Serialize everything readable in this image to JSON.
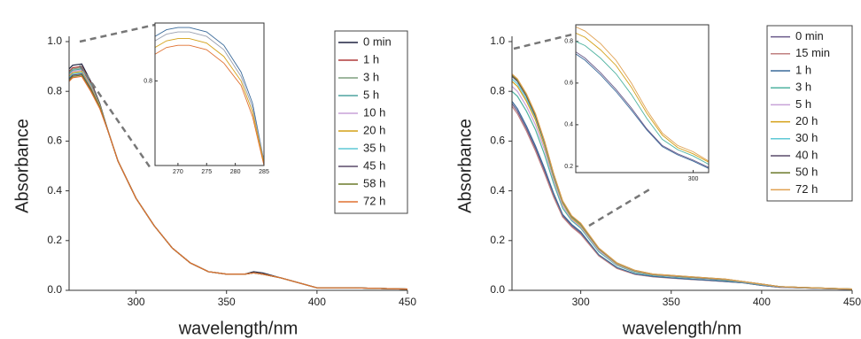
{
  "chart_data": [
    {
      "type": "line",
      "x_label": "wavelength/nm",
      "y_label": "Absorbance",
      "x": [
        263,
        265,
        270,
        275,
        280,
        285,
        290,
        300,
        310,
        320,
        330,
        340,
        350,
        360,
        365,
        370,
        380,
        390,
        400,
        420,
        450
      ],
      "xlim": [
        263,
        450
      ],
      "xticks": [
        300,
        350,
        400,
        450
      ],
      "ylim": [
        0,
        1
      ],
      "yticks": [
        {
          "value": 0,
          "label": "0.0"
        },
        0.2,
        0.4,
        0.6,
        0.8,
        {
          "value": 1,
          "label": "1.0"
        }
      ],
      "legend": "upper right",
      "series": [
        {
          "name": "0 min",
          "color": "#1f2240",
          "values": [
            0.89,
            0.905,
            0.91,
            0.84,
            0.75,
            0.63,
            0.52,
            0.37,
            0.26,
            0.17,
            0.11,
            0.075,
            0.065,
            0.065,
            0.075,
            0.07,
            0.05,
            0.03,
            0.01,
            0.01,
            0.005
          ]
        },
        {
          "name": "1 h",
          "color": "#b03a3a",
          "values": [
            0.88,
            0.895,
            0.9,
            0.835,
            0.745,
            0.63,
            0.52,
            0.37,
            0.26,
            0.17,
            0.11,
            0.075,
            0.065,
            0.065,
            0.07,
            0.065,
            0.05,
            0.03,
            0.01,
            0.01,
            0.005
          ]
        },
        {
          "name": "3 h",
          "color": "#7f9f7f",
          "values": [
            0.875,
            0.89,
            0.895,
            0.83,
            0.745,
            0.63,
            0.52,
            0.37,
            0.26,
            0.17,
            0.11,
            0.075,
            0.065,
            0.065,
            0.07,
            0.065,
            0.05,
            0.03,
            0.01,
            0.01,
            0.005
          ]
        },
        {
          "name": "5 h",
          "color": "#4fa3a0",
          "values": [
            0.87,
            0.885,
            0.89,
            0.825,
            0.74,
            0.63,
            0.52,
            0.37,
            0.26,
            0.17,
            0.11,
            0.075,
            0.065,
            0.065,
            0.07,
            0.065,
            0.05,
            0.03,
            0.01,
            0.01,
            0.005
          ]
        },
        {
          "name": "10 h",
          "color": "#c8a2d8",
          "values": [
            0.865,
            0.88,
            0.885,
            0.82,
            0.74,
            0.63,
            0.52,
            0.37,
            0.26,
            0.17,
            0.11,
            0.075,
            0.065,
            0.065,
            0.07,
            0.065,
            0.05,
            0.03,
            0.01,
            0.01,
            0.005
          ]
        },
        {
          "name": "20 h",
          "color": "#d4a017",
          "values": [
            0.86,
            0.875,
            0.88,
            0.815,
            0.74,
            0.63,
            0.52,
            0.37,
            0.26,
            0.17,
            0.11,
            0.075,
            0.065,
            0.065,
            0.07,
            0.065,
            0.05,
            0.03,
            0.01,
            0.01,
            0.005
          ]
        },
        {
          "name": "35 h",
          "color": "#5fc9d6",
          "values": [
            0.855,
            0.87,
            0.875,
            0.81,
            0.735,
            0.63,
            0.52,
            0.37,
            0.26,
            0.17,
            0.11,
            0.075,
            0.065,
            0.065,
            0.07,
            0.065,
            0.05,
            0.03,
            0.01,
            0.01,
            0.005
          ]
        },
        {
          "name": "45 h",
          "color": "#5a4a6a",
          "values": [
            0.85,
            0.865,
            0.87,
            0.81,
            0.735,
            0.63,
            0.52,
            0.37,
            0.26,
            0.17,
            0.11,
            0.075,
            0.065,
            0.065,
            0.07,
            0.065,
            0.05,
            0.03,
            0.01,
            0.01,
            0.005
          ]
        },
        {
          "name": "58 h",
          "color": "#6b7a2a",
          "values": [
            0.845,
            0.86,
            0.865,
            0.805,
            0.735,
            0.63,
            0.52,
            0.37,
            0.26,
            0.17,
            0.11,
            0.075,
            0.065,
            0.065,
            0.07,
            0.065,
            0.05,
            0.03,
            0.01,
            0.01,
            0.005
          ]
        },
        {
          "name": "72 h",
          "color": "#e07030",
          "values": [
            0.84,
            0.855,
            0.86,
            0.8,
            0.73,
            0.63,
            0.52,
            0.37,
            0.26,
            0.17,
            0.11,
            0.075,
            0.065,
            0.065,
            0.07,
            0.065,
            0.05,
            0.03,
            0.01,
            0.01,
            0.005
          ]
        }
      ]
    },
    {
      "type": "line",
      "x_label": "wavelength/nm",
      "y_label": "Absorbance",
      "x": [
        262,
        265,
        270,
        275,
        280,
        285,
        290,
        295,
        300,
        310,
        320,
        330,
        340,
        350,
        360,
        370,
        380,
        390,
        400,
        410,
        420,
        450
      ],
      "xlim": [
        262,
        450
      ],
      "xticks": [
        300,
        350,
        400,
        450
      ],
      "ylim": [
        0,
        1
      ],
      "yticks": [
        {
          "value": 0,
          "label": "0.0"
        },
        0.2,
        0.4,
        0.6,
        0.8,
        {
          "value": 1,
          "label": "1.0"
        }
      ],
      "legend": "upper right",
      "series": [
        {
          "name": "0 min",
          "color": "#6a5a8a",
          "values": [
            0.75,
            0.72,
            0.65,
            0.57,
            0.48,
            0.38,
            0.3,
            0.26,
            0.23,
            0.14,
            0.09,
            0.065,
            0.055,
            0.05,
            0.045,
            0.04,
            0.035,
            0.03,
            0.02,
            0.012,
            0.01,
            0.004
          ]
        },
        {
          "name": "15 min",
          "color": "#c08080",
          "values": [
            0.74,
            0.71,
            0.64,
            0.56,
            0.47,
            0.375,
            0.295,
            0.255,
            0.225,
            0.138,
            0.088,
            0.064,
            0.054,
            0.049,
            0.044,
            0.04,
            0.035,
            0.03,
            0.02,
            0.012,
            0.01,
            0.004
          ]
        },
        {
          "name": "1 h",
          "color": "#3a6a9a",
          "values": [
            0.76,
            0.73,
            0.66,
            0.58,
            0.49,
            0.39,
            0.305,
            0.265,
            0.235,
            0.143,
            0.092,
            0.066,
            0.056,
            0.05,
            0.045,
            0.041,
            0.036,
            0.03,
            0.02,
            0.013,
            0.01,
            0.004
          ]
        },
        {
          "name": "3 h",
          "color": "#4fb3a0",
          "values": [
            0.8,
            0.78,
            0.72,
            0.645,
            0.545,
            0.43,
            0.33,
            0.28,
            0.25,
            0.155,
            0.1,
            0.072,
            0.06,
            0.055,
            0.05,
            0.046,
            0.04,
            0.032,
            0.022,
            0.014,
            0.011,
            0.005
          ]
        },
        {
          "name": "5 h",
          "color": "#c8a2d8",
          "values": [
            0.82,
            0.8,
            0.74,
            0.665,
            0.565,
            0.445,
            0.34,
            0.285,
            0.255,
            0.16,
            0.103,
            0.075,
            0.062,
            0.057,
            0.052,
            0.047,
            0.042,
            0.033,
            0.023,
            0.014,
            0.011,
            0.005
          ]
        },
        {
          "name": "20 h",
          "color": "#d4a017",
          "values": [
            0.84,
            0.82,
            0.76,
            0.685,
            0.58,
            0.455,
            0.35,
            0.29,
            0.26,
            0.165,
            0.106,
            0.077,
            0.063,
            0.058,
            0.053,
            0.048,
            0.043,
            0.034,
            0.024,
            0.015,
            0.012,
            0.005
          ]
        },
        {
          "name": "30 h",
          "color": "#5fc9d6",
          "values": [
            0.85,
            0.83,
            0.77,
            0.695,
            0.59,
            0.46,
            0.355,
            0.295,
            0.265,
            0.167,
            0.108,
            0.078,
            0.064,
            0.059,
            0.054,
            0.049,
            0.044,
            0.034,
            0.024,
            0.015,
            0.012,
            0.005
          ]
        },
        {
          "name": "40 h",
          "color": "#5a4a6a",
          "values": [
            0.86,
            0.84,
            0.78,
            0.7,
            0.595,
            0.465,
            0.357,
            0.297,
            0.267,
            0.168,
            0.109,
            0.079,
            0.064,
            0.059,
            0.054,
            0.049,
            0.044,
            0.035,
            0.025,
            0.015,
            0.012,
            0.005
          ]
        },
        {
          "name": "50 h",
          "color": "#6b7a2a",
          "values": [
            0.865,
            0.845,
            0.785,
            0.705,
            0.598,
            0.468,
            0.358,
            0.298,
            0.268,
            0.169,
            0.11,
            0.08,
            0.065,
            0.06,
            0.055,
            0.05,
            0.045,
            0.035,
            0.025,
            0.015,
            0.012,
            0.005
          ]
        },
        {
          "name": "72 h",
          "color": "#e0a050",
          "values": [
            0.87,
            0.85,
            0.79,
            0.71,
            0.6,
            0.47,
            0.36,
            0.3,
            0.27,
            0.17,
            0.11,
            0.08,
            0.065,
            0.06,
            0.055,
            0.05,
            0.045,
            0.035,
            0.025,
            0.015,
            0.012,
            0.005
          ]
        }
      ]
    },
    {
      "type": "line",
      "x": [
        266,
        268,
        270,
        272,
        275,
        278,
        281,
        283,
        285
      ],
      "xlim": [
        266,
        285
      ],
      "xticks": [
        270,
        275,
        280,
        285
      ],
      "ylim": [
        0.61,
        0.93
      ],
      "yticks": [
        0.8
      ],
      "series": [
        {
          "color": "#3a6a9a",
          "values": [
            0.9,
            0.915,
            0.92,
            0.92,
            0.91,
            0.88,
            0.82,
            0.75,
            0.62
          ]
        },
        {
          "color": "#9aa0b0",
          "values": [
            0.89,
            0.905,
            0.91,
            0.91,
            0.9,
            0.87,
            0.81,
            0.74,
            0.62
          ]
        },
        {
          "color": "#d4a017",
          "values": [
            0.875,
            0.89,
            0.895,
            0.895,
            0.885,
            0.855,
            0.8,
            0.73,
            0.615
          ]
        },
        {
          "color": "#e07030",
          "values": [
            0.86,
            0.875,
            0.88,
            0.88,
            0.87,
            0.84,
            0.79,
            0.72,
            0.61
          ]
        }
      ]
    },
    {
      "type": "line",
      "x": [
        262,
        265,
        270,
        275,
        280,
        285,
        290,
        295,
        300,
        305
      ],
      "xlim": [
        262,
        305
      ],
      "xticks": [
        300
      ],
      "ylim": [
        0.17,
        0.88
      ],
      "yticks": [
        0.2,
        0.4,
        0.6,
        0.8
      ],
      "series": [
        {
          "color": "#3a6a9a",
          "values": [
            0.74,
            0.71,
            0.64,
            0.56,
            0.47,
            0.375,
            0.295,
            0.255,
            0.225,
            0.19
          ]
        },
        {
          "color": "#6a5a8a",
          "values": [
            0.75,
            0.72,
            0.65,
            0.57,
            0.48,
            0.38,
            0.3,
            0.26,
            0.23,
            0.195
          ]
        },
        {
          "color": "#4fb3a0",
          "values": [
            0.8,
            0.78,
            0.72,
            0.645,
            0.545,
            0.43,
            0.33,
            0.28,
            0.25,
            0.21
          ]
        },
        {
          "color": "#d4a017",
          "values": [
            0.84,
            0.82,
            0.76,
            0.685,
            0.58,
            0.455,
            0.35,
            0.29,
            0.26,
            0.22
          ]
        },
        {
          "color": "#e0a050",
          "values": [
            0.87,
            0.85,
            0.79,
            0.71,
            0.6,
            0.47,
            0.36,
            0.3,
            0.27,
            0.225
          ]
        }
      ]
    }
  ]
}
